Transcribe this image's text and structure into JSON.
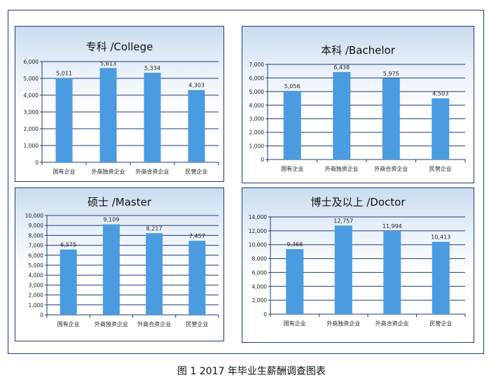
{
  "caption": "图 1  2017 年毕业生薪酬调查图表",
  "colors": {
    "bar": "#4a9be0",
    "grid": "#1f3a7a",
    "border": "#1f3a7a"
  },
  "chart_data": [
    {
      "type": "bar",
      "title": "专科 /College",
      "categories": [
        "国有企业",
        "外商独资企业",
        "外商合资企业",
        "民营企业"
      ],
      "values": [
        5011,
        5613,
        5334,
        4303
      ],
      "value_labels": [
        "5,011",
        "5,613",
        "5,334",
        "4,303"
      ],
      "ylim": [
        0,
        6000
      ],
      "yticks": [
        0,
        1000,
        2000,
        3000,
        4000,
        5000,
        6000
      ],
      "ytick_labels": [
        "0",
        "1,000",
        "2,000",
        "3,000",
        "4,000",
        "5,000",
        "6,000"
      ],
      "grid": true,
      "legend": "none"
    },
    {
      "type": "bar",
      "title": "本科 /Bachelor",
      "categories": [
        "国有企业",
        "外商独资企业",
        "外商合资企业",
        "民营企业"
      ],
      "values": [
        5056,
        6438,
        5975,
        4503
      ],
      "value_labels": [
        "5,056",
        "6,438",
        "5,975",
        "4,503"
      ],
      "ylim": [
        0,
        7000
      ],
      "yticks": [
        0,
        1000,
        2000,
        3000,
        4000,
        5000,
        6000,
        7000
      ],
      "ytick_labels": [
        "0",
        "1,000",
        "2,000",
        "3,000",
        "4,000",
        "5,000",
        "6,000",
        "7,000"
      ],
      "grid": true,
      "legend": "none"
    },
    {
      "type": "bar",
      "title": "硕士 /Master",
      "categories": [
        "国有企业",
        "外商独资企业",
        "外商合资企业",
        "民营企业"
      ],
      "values": [
        6575,
        9109,
        8217,
        7457
      ],
      "value_labels": [
        "6,575",
        "9,109",
        "8,217",
        "7,457"
      ],
      "ylim": [
        0,
        10000
      ],
      "yticks": [
        0,
        1000,
        2000,
        3000,
        4000,
        5000,
        6000,
        7000,
        8000,
        9000,
        10000
      ],
      "ytick_labels": [
        "0",
        "1,000",
        "2,000",
        "3,000",
        "4,000",
        "5,000",
        "6,000",
        "7,000",
        "8,000",
        "9,000",
        "10,000"
      ],
      "grid": true,
      "legend": "none"
    },
    {
      "type": "bar",
      "title": "博士及以上 /Doctor",
      "categories": [
        "国有企业",
        "外商独资企业",
        "外商合资企业",
        "民营企业"
      ],
      "values": [
        9368,
        12757,
        11994,
        10413
      ],
      "value_labels": [
        "9,368",
        "12,757",
        "11,994",
        "10,413"
      ],
      "ylim": [
        0,
        14000
      ],
      "yticks": [
        0,
        2000,
        4000,
        6000,
        8000,
        10000,
        12000,
        14000
      ],
      "ytick_labels": [
        "0",
        "2,000",
        "4,000",
        "6,000",
        "8,000",
        "10,000",
        "12,000",
        "14,000"
      ],
      "grid": true,
      "legend": "none"
    }
  ]
}
